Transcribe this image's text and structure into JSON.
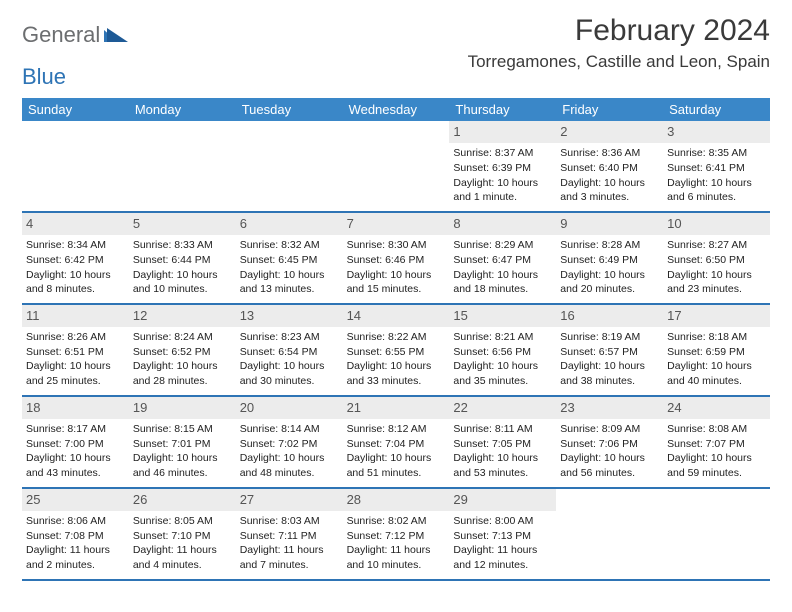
{
  "brand": {
    "part1": "General",
    "part2": "Blue"
  },
  "title": "February 2024",
  "location": "Torregamones, Castille and Leon, Spain",
  "colors": {
    "header_bg": "#3a87c8",
    "week_border": "#2e74b5",
    "daynum_bg": "#ececec",
    "brand_gray": "#6c6e70",
    "brand_blue": "#2e74b5"
  },
  "weekdays": [
    "Sunday",
    "Monday",
    "Tuesday",
    "Wednesday",
    "Thursday",
    "Friday",
    "Saturday"
  ],
  "weeks": [
    [
      null,
      null,
      null,
      null,
      {
        "n": "1",
        "sr": "8:37 AM",
        "ss": "6:39 PM",
        "dl": "10 hours and 1 minute."
      },
      {
        "n": "2",
        "sr": "8:36 AM",
        "ss": "6:40 PM",
        "dl": "10 hours and 3 minutes."
      },
      {
        "n": "3",
        "sr": "8:35 AM",
        "ss": "6:41 PM",
        "dl": "10 hours and 6 minutes."
      }
    ],
    [
      {
        "n": "4",
        "sr": "8:34 AM",
        "ss": "6:42 PM",
        "dl": "10 hours and 8 minutes."
      },
      {
        "n": "5",
        "sr": "8:33 AM",
        "ss": "6:44 PM",
        "dl": "10 hours and 10 minutes."
      },
      {
        "n": "6",
        "sr": "8:32 AM",
        "ss": "6:45 PM",
        "dl": "10 hours and 13 minutes."
      },
      {
        "n": "7",
        "sr": "8:30 AM",
        "ss": "6:46 PM",
        "dl": "10 hours and 15 minutes."
      },
      {
        "n": "8",
        "sr": "8:29 AM",
        "ss": "6:47 PM",
        "dl": "10 hours and 18 minutes."
      },
      {
        "n": "9",
        "sr": "8:28 AM",
        "ss": "6:49 PM",
        "dl": "10 hours and 20 minutes."
      },
      {
        "n": "10",
        "sr": "8:27 AM",
        "ss": "6:50 PM",
        "dl": "10 hours and 23 minutes."
      }
    ],
    [
      {
        "n": "11",
        "sr": "8:26 AM",
        "ss": "6:51 PM",
        "dl": "10 hours and 25 minutes."
      },
      {
        "n": "12",
        "sr": "8:24 AM",
        "ss": "6:52 PM",
        "dl": "10 hours and 28 minutes."
      },
      {
        "n": "13",
        "sr": "8:23 AM",
        "ss": "6:54 PM",
        "dl": "10 hours and 30 minutes."
      },
      {
        "n": "14",
        "sr": "8:22 AM",
        "ss": "6:55 PM",
        "dl": "10 hours and 33 minutes."
      },
      {
        "n": "15",
        "sr": "8:21 AM",
        "ss": "6:56 PM",
        "dl": "10 hours and 35 minutes."
      },
      {
        "n": "16",
        "sr": "8:19 AM",
        "ss": "6:57 PM",
        "dl": "10 hours and 38 minutes."
      },
      {
        "n": "17",
        "sr": "8:18 AM",
        "ss": "6:59 PM",
        "dl": "10 hours and 40 minutes."
      }
    ],
    [
      {
        "n": "18",
        "sr": "8:17 AM",
        "ss": "7:00 PM",
        "dl": "10 hours and 43 minutes."
      },
      {
        "n": "19",
        "sr": "8:15 AM",
        "ss": "7:01 PM",
        "dl": "10 hours and 46 minutes."
      },
      {
        "n": "20",
        "sr": "8:14 AM",
        "ss": "7:02 PM",
        "dl": "10 hours and 48 minutes."
      },
      {
        "n": "21",
        "sr": "8:12 AM",
        "ss": "7:04 PM",
        "dl": "10 hours and 51 minutes."
      },
      {
        "n": "22",
        "sr": "8:11 AM",
        "ss": "7:05 PM",
        "dl": "10 hours and 53 minutes."
      },
      {
        "n": "23",
        "sr": "8:09 AM",
        "ss": "7:06 PM",
        "dl": "10 hours and 56 minutes."
      },
      {
        "n": "24",
        "sr": "8:08 AM",
        "ss": "7:07 PM",
        "dl": "10 hours and 59 minutes."
      }
    ],
    [
      {
        "n": "25",
        "sr": "8:06 AM",
        "ss": "7:08 PM",
        "dl": "11 hours and 2 minutes."
      },
      {
        "n": "26",
        "sr": "8:05 AM",
        "ss": "7:10 PM",
        "dl": "11 hours and 4 minutes."
      },
      {
        "n": "27",
        "sr": "8:03 AM",
        "ss": "7:11 PM",
        "dl": "11 hours and 7 minutes."
      },
      {
        "n": "28",
        "sr": "8:02 AM",
        "ss": "7:12 PM",
        "dl": "11 hours and 10 minutes."
      },
      {
        "n": "29",
        "sr": "8:00 AM",
        "ss": "7:13 PM",
        "dl": "11 hours and 12 minutes."
      },
      null,
      null
    ]
  ],
  "labels": {
    "sunrise": "Sunrise:",
    "sunset": "Sunset:",
    "daylight": "Daylight:"
  }
}
